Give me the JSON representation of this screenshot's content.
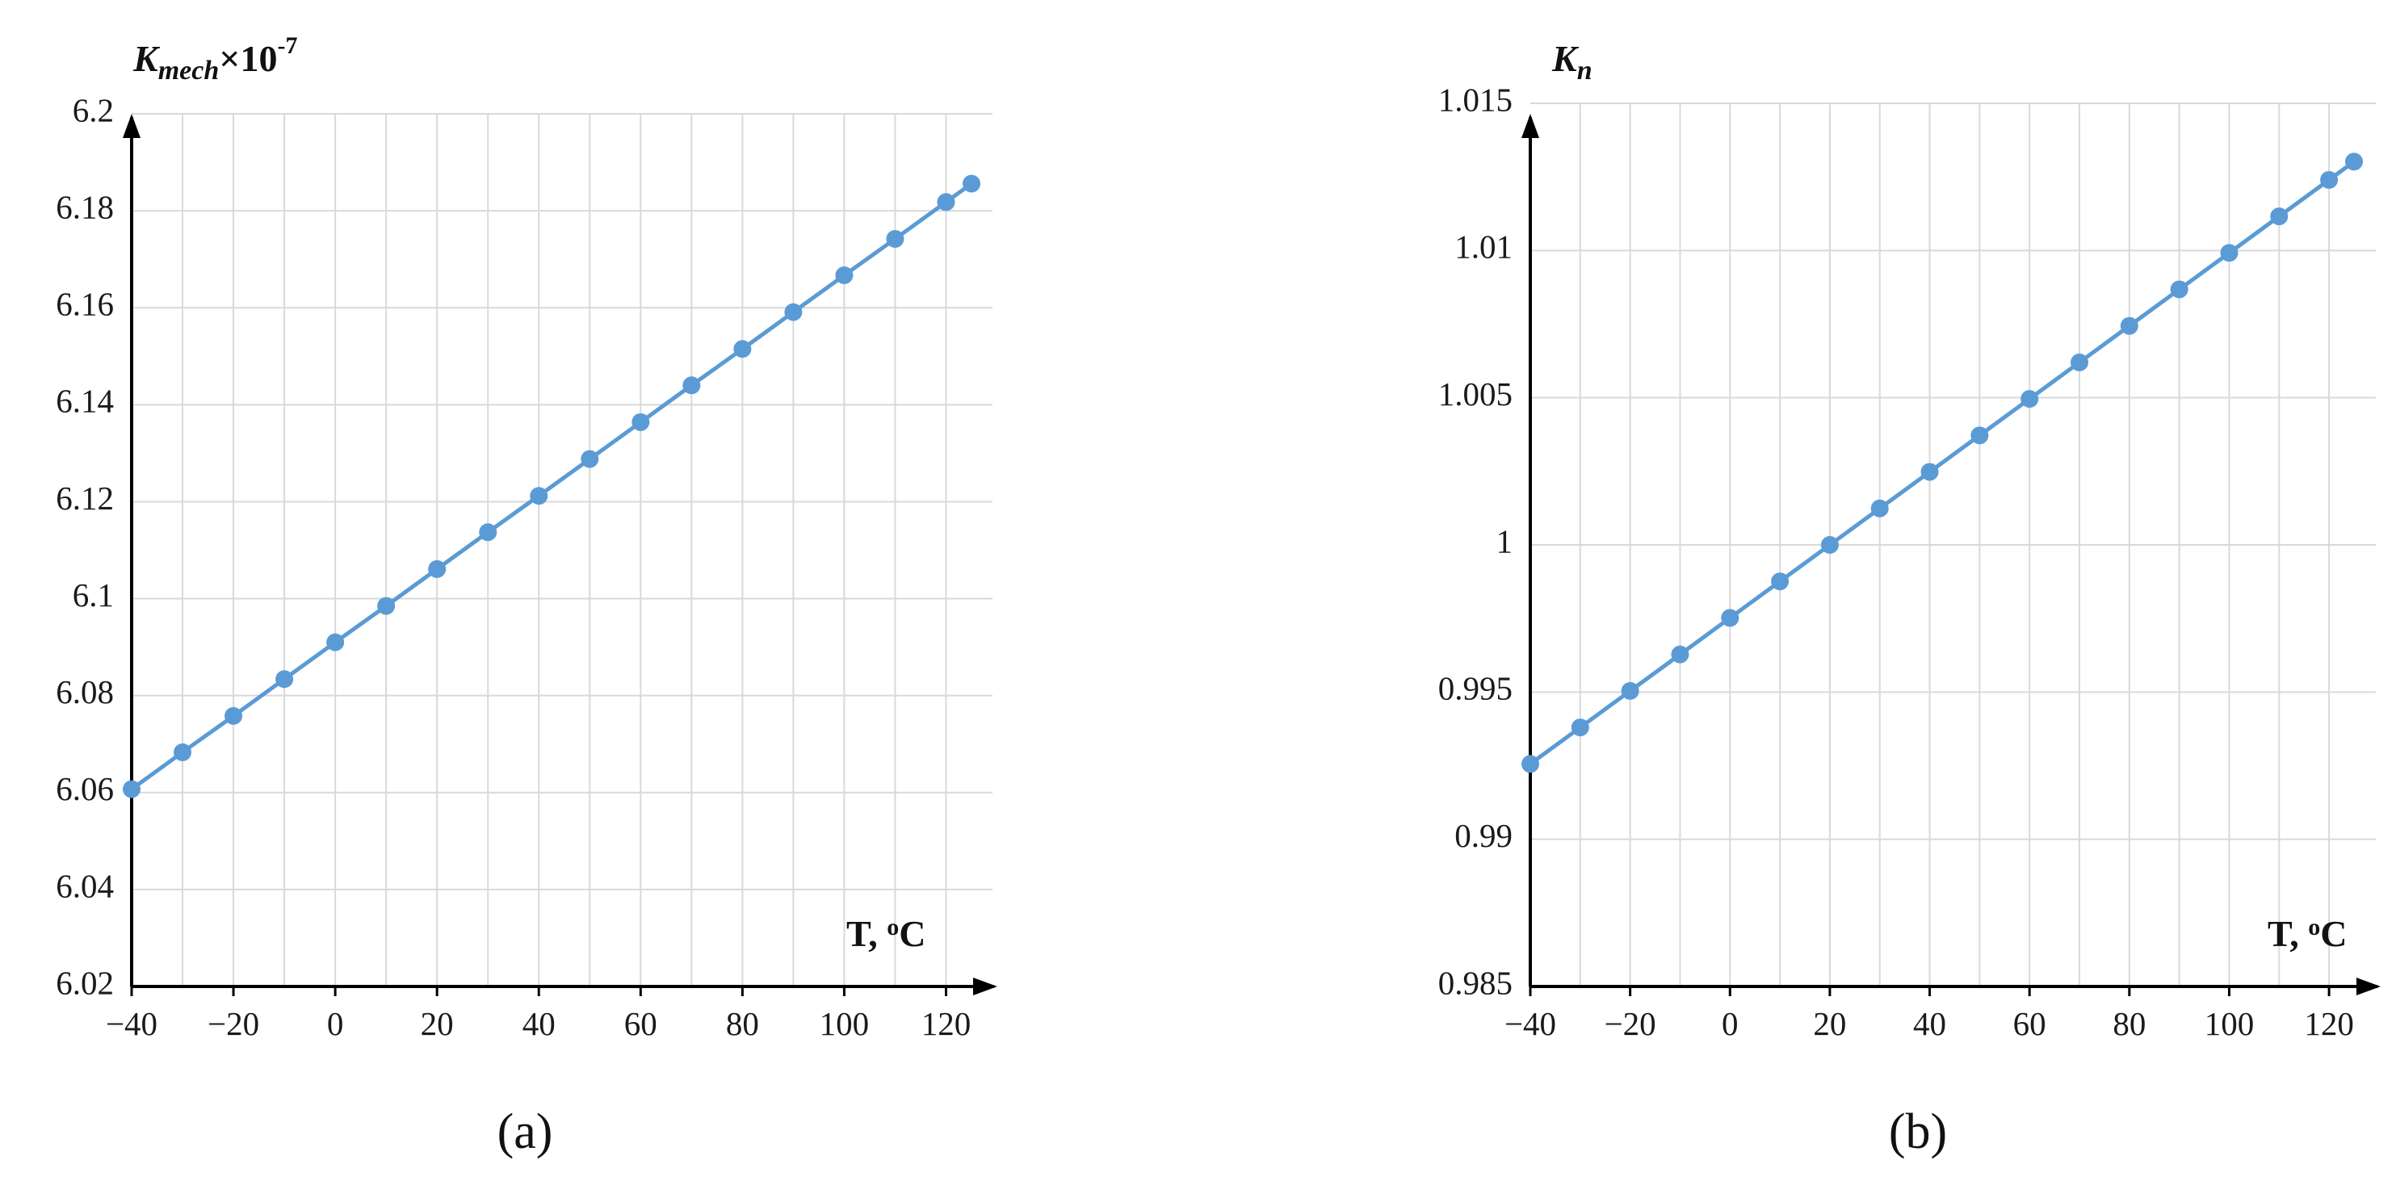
{
  "chart_data": [
    {
      "type": "line",
      "panel_label": "(a)",
      "ylabel_main": "K",
      "ylabel_sub": "mech",
      "ylabel_suffix": "×10",
      "ylabel_sup": "-7",
      "xlabel": "T, ",
      "xlabel_unit_sup": "o",
      "xlabel_unit": "C",
      "xlim": [
        -40,
        125
      ],
      "ylim": [
        6.02,
        6.2
      ],
      "x_ticks": [
        -40,
        -20,
        0,
        20,
        40,
        60,
        80,
        100,
        120
      ],
      "x_tick_labels": [
        "−40",
        "−20",
        "0",
        "20",
        "40",
        "60",
        "80",
        "100",
        "120"
      ],
      "x_grid": [
        -40,
        -30,
        -20,
        -10,
        0,
        10,
        20,
        30,
        40,
        50,
        60,
        70,
        80,
        90,
        100,
        110,
        120
      ],
      "y_ticks": [
        6.02,
        6.04,
        6.06,
        6.08,
        6.1,
        6.12,
        6.14,
        6.16,
        6.18,
        6.2
      ],
      "y_tick_labels": [
        "6.02",
        "6.04",
        "6.06",
        "6.08",
        "6.1",
        "6.12",
        "6.14",
        "6.16",
        "6.18",
        "6.2"
      ],
      "grid": true,
      "color": "#5b9bd5",
      "x": [
        -40,
        -30,
        -20,
        -10,
        0,
        10,
        20,
        30,
        40,
        50,
        60,
        70,
        80,
        90,
        100,
        110,
        120,
        125
      ],
      "y": [
        6.0607,
        6.0683,
        6.0758,
        6.0834,
        6.091,
        6.0985,
        6.1061,
        6.1137,
        6.1212,
        6.1288,
        6.1364,
        6.144,
        6.1515,
        6.1591,
        6.1667,
        6.1742,
        6.1818,
        6.1856
      ]
    },
    {
      "type": "line",
      "panel_label": "(b)",
      "ylabel_main": "K",
      "ylabel_sub": "n",
      "ylabel_suffix": "",
      "ylabel_sup": "",
      "xlabel": "T, ",
      "xlabel_unit_sup": "o",
      "xlabel_unit": "C",
      "xlim": [
        -40,
        125
      ],
      "ylim": [
        0.985,
        1.015
      ],
      "x_ticks": [
        -40,
        -20,
        0,
        20,
        40,
        60,
        80,
        100,
        120
      ],
      "x_tick_labels": [
        "−40",
        "−20",
        "0",
        "20",
        "40",
        "60",
        "80",
        "100",
        "120"
      ],
      "x_grid": [
        -40,
        -30,
        -20,
        -10,
        0,
        10,
        20,
        30,
        40,
        50,
        60,
        70,
        80,
        90,
        100,
        110,
        120
      ],
      "y_ticks": [
        0.985,
        0.99,
        0.995,
        1.0,
        1.005,
        1.01,
        1.015
      ],
      "y_tick_labels": [
        "0.985",
        "0.99",
        "0.995",
        "1",
        "1.005",
        "1.01",
        "1.015"
      ],
      "grid": true,
      "color": "#5b9bd5",
      "x": [
        -40,
        -30,
        -20,
        -10,
        0,
        10,
        20,
        30,
        40,
        50,
        60,
        70,
        80,
        90,
        100,
        110,
        120,
        125
      ],
      "y": [
        0.99256,
        0.9938,
        0.99504,
        0.99628,
        0.99752,
        0.99876,
        1.0,
        1.00124,
        1.00248,
        1.00372,
        1.00496,
        1.0062,
        1.00744,
        1.00868,
        1.00992,
        1.01116,
        1.0124,
        1.01302
      ]
    }
  ]
}
